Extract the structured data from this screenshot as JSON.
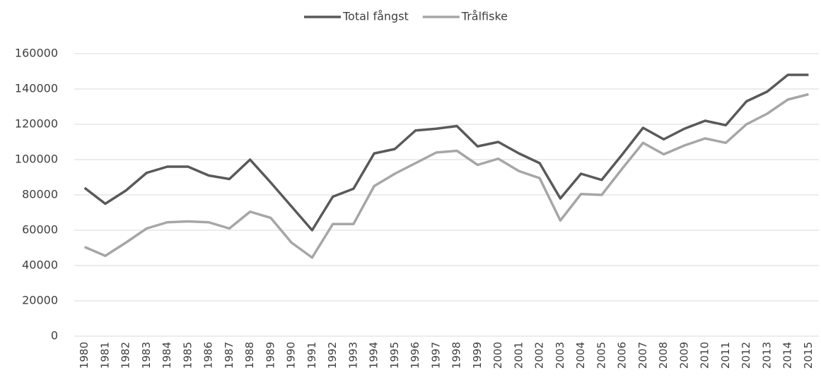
{
  "chart_data": {
    "type": "line",
    "categories": [
      "1980",
      "1981",
      "1982",
      "1983",
      "1984",
      "1985",
      "1986",
      "1987",
      "1988",
      "1989",
      "1990",
      "1991",
      "1992",
      "1993",
      "1994",
      "1995",
      "1996",
      "1997",
      "1998",
      "1999",
      "2000",
      "2001",
      "2002",
      "2003",
      "2004",
      "2005",
      "2006",
      "2007",
      "2008",
      "2009",
      "2010",
      "2011",
      "2012",
      "2013",
      "2014",
      "2015"
    ],
    "series": [
      {
        "name": "Total fångst",
        "color": "#595959",
        "values": [
          84000,
          75000,
          82500,
          92500,
          96000,
          96000,
          91000,
          89000,
          100000,
          87000,
          73500,
          60000,
          79000,
          83500,
          103500,
          106000,
          116500,
          117500,
          119000,
          107500,
          110000,
          103500,
          98000,
          78000,
          92000,
          88500,
          103000,
          118000,
          111500,
          117500,
          122000,
          119500,
          133000,
          138500,
          148000,
          148000
        ]
      },
      {
        "name": "Trålfiske",
        "color": "#a6a6a6",
        "values": [
          50500,
          45500,
          53000,
          61000,
          64500,
          65000,
          64500,
          61000,
          70500,
          67000,
          53000,
          44500,
          63500,
          63500,
          85000,
          92000,
          98000,
          104000,
          105000,
          97000,
          100500,
          93500,
          89500,
          65500,
          80500,
          80000,
          95000,
          109500,
          103000,
          108000,
          112000,
          109500,
          120000,
          126000,
          134000,
          137000
        ]
      }
    ],
    "ylim": [
      0,
      160000
    ],
    "yticks": [
      0,
      20000,
      40000,
      60000,
      80000,
      100000,
      120000,
      140000,
      160000
    ],
    "grid": true,
    "legend": "top"
  }
}
